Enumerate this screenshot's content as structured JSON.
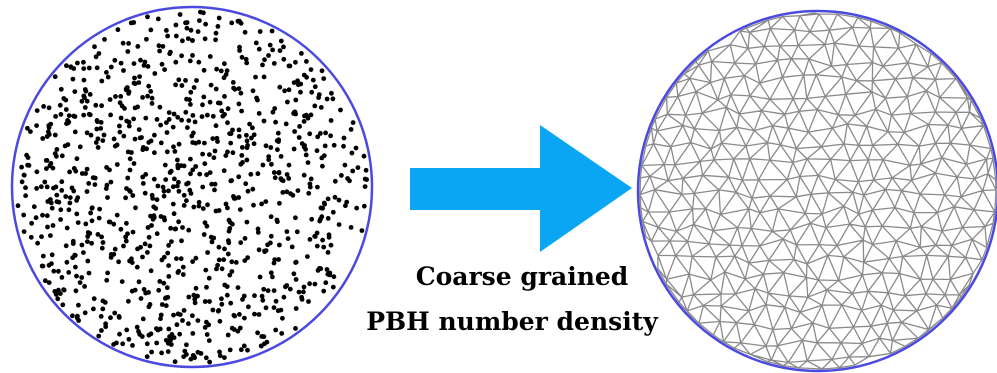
{
  "caption": {
    "line1": "Coarse grained",
    "line2": "PBH number density"
  },
  "colors": {
    "boundary": "#4a4ae0",
    "arrow": "#0aa6f3",
    "points": "#000000",
    "mesh": "#8a8a8a",
    "background": "#ffffff"
  },
  "panels": {
    "left": {
      "content": "scattered-points",
      "point_count": 1000
    },
    "right": {
      "content": "triangulated-mesh"
    }
  }
}
